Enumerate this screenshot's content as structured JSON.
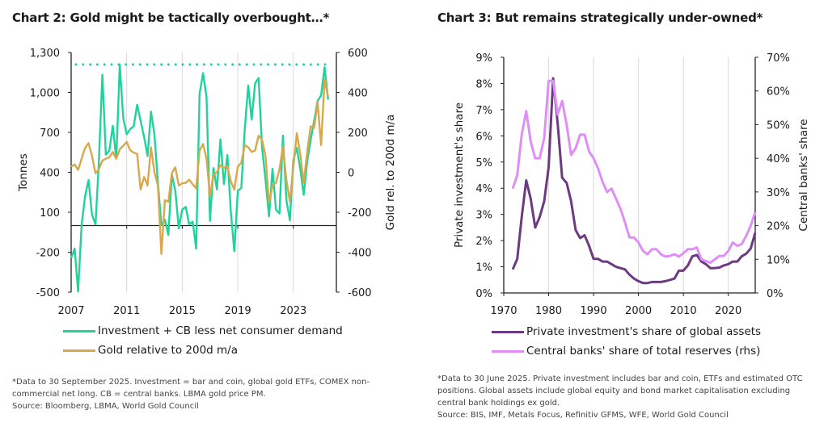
{
  "chart_data": [
    {
      "type": "line",
      "title": "Chart 2: Gold might be tactically overbought…*",
      "ylabel": "Tonnes",
      "y2label": "Gold rel. to 200d m/a",
      "ylim": [
        -500,
        1300
      ],
      "y2lim": [
        -600,
        600
      ],
      "yticks": [
        "1,300",
        "1,000",
        "700",
        "400",
        "100",
        "-200",
        "-500"
      ],
      "ytick_values": [
        1300,
        1000,
        700,
        400,
        100,
        -200,
        -500
      ],
      "y2ticks": [
        "600",
        "400",
        "200",
        "0",
        "-200",
        "-400",
        "-600"
      ],
      "y2tick_values": [
        600,
        400,
        200,
        0,
        -200,
        -400,
        -600
      ],
      "xticks": [
        "2007",
        "2011",
        "2015",
        "2019",
        "2023"
      ],
      "xtick_values": [
        2007,
        2011,
        2015,
        2019,
        2023
      ],
      "xlim": [
        2007,
        2026.1
      ],
      "frequency": "quarterly",
      "x_start": 2007,
      "grid": "vertical",
      "legend_position": "bottom",
      "reference_line": {
        "value": 1210,
        "axis": "left",
        "style": "dotted",
        "color": "#1fd39a"
      },
      "series": [
        {
          "name": "Investment + CB less net consumer demand",
          "axis": "left",
          "color": "#1fd39a",
          "values": [
            -244,
            -173,
            -496,
            2,
            220,
            342,
            80,
            9,
            483,
            1133,
            533,
            563,
            749,
            503,
            1209,
            806,
            685,
            725,
            745,
            907,
            786,
            665,
            523,
            856,
            685,
            321,
            2,
            45,
            -70,
            383,
            261,
            -21,
            120,
            140,
            9,
            29,
            -173,
            987,
            1144,
            967,
            35,
            432,
            271,
            648,
            311,
            529,
            100,
            -193,
            261,
            281,
            725,
            1052,
            796,
            1068,
            1108,
            584,
            342,
            69,
            426,
            120,
            90,
            675,
            190,
            39,
            493,
            584,
            422,
            231,
            483,
            644,
            786,
            937,
            977,
            1189,
            947
          ]
        },
        {
          "name": "Gold relative to 200d m/a",
          "axis": "right",
          "color": "#d9a84c",
          "values": [
            28,
            39,
            12,
            68,
            122,
            146,
            82,
            -5,
            15,
            58,
            68,
            75,
            102,
            68,
            115,
            133,
            152,
            111,
            98,
            93,
            -86,
            -23,
            -66,
            125,
            1,
            -66,
            -409,
            -140,
            -147,
            -5,
            25,
            -66,
            -55,
            -53,
            -37,
            -60,
            -80,
            109,
            142,
            68,
            -120,
            -12,
            1,
            35,
            22,
            31,
            -46,
            -86,
            28,
            48,
            136,
            125,
            102,
            109,
            183,
            163,
            82,
            -154,
            -66,
            -53,
            15,
            129,
            -39,
            -147,
            28,
            196,
            89,
            -53,
            102,
            230,
            223,
            351,
            136,
            465,
            378
          ]
        }
      ],
      "footnote": [
        "*Data to 30 September 2025. Investment = bar and coin, global gold ETFs, COMEX non-",
        "commercial net long. CB = central banks. LBMA gold price PM.",
        "Source: Bloomberg, LBMA, World Gold Council"
      ]
    },
    {
      "type": "line",
      "title": "Chart 3: But remains strategically under-owned*",
      "ylabel": "Private investment's share",
      "y2label": "Central banks' share",
      "ylim": [
        0,
        9
      ],
      "y2lim": [
        0,
        70
      ],
      "yticks": [
        "9%",
        "8%",
        "7%",
        "6%",
        "5%",
        "4%",
        "3%",
        "2%",
        "1%",
        "0%"
      ],
      "ytick_values": [
        9,
        8,
        7,
        6,
        5,
        4,
        3,
        2,
        1,
        0
      ],
      "y2ticks": [
        "70%",
        "60%",
        "50%",
        "40%",
        "30%",
        "20%",
        "10%",
        "0%"
      ],
      "y2tick_values": [
        70,
        60,
        50,
        40,
        30,
        20,
        10,
        0
      ],
      "xticks": [
        "1970",
        "1980",
        "1990",
        "2000",
        "2010",
        "2020"
      ],
      "xtick_values": [
        1970,
        1980,
        1990,
        2000,
        2010,
        2020
      ],
      "xlim": [
        1970,
        2026
      ],
      "frequency": "annual",
      "x_start": 1972,
      "grid": "vertical",
      "legend_position": "bottom",
      "series": [
        {
          "name": "Private investment's share of global assets",
          "axis": "left",
          "color": "#6c3a80",
          "values": [
            0.9,
            1.3,
            2.9,
            4.3,
            3.6,
            2.5,
            2.9,
            3.5,
            4.8,
            8.2,
            6.5,
            4.4,
            4.2,
            3.5,
            2.4,
            2.1,
            2.2,
            1.8,
            1.3,
            1.3,
            1.2,
            1.2,
            1.1,
            1.0,
            0.95,
            0.9,
            0.7,
            0.55,
            0.45,
            0.38,
            0.38,
            0.42,
            0.42,
            0.42,
            0.45,
            0.5,
            0.55,
            0.85,
            0.85,
            1.05,
            1.4,
            1.45,
            1.2,
            1.1,
            0.95,
            0.95,
            0.97,
            1.05,
            1.1,
            1.2,
            1.2,
            1.4,
            1.5,
            1.7,
            2.3
          ]
        },
        {
          "name": "Central banks' share of total reserves (rhs)",
          "axis": "right",
          "color": "#e08ef7",
          "values": [
            31,
            35,
            47,
            54,
            45,
            40,
            40,
            46,
            63,
            63,
            53,
            57,
            50,
            41,
            43,
            47,
            47,
            42,
            40,
            37,
            33,
            30,
            31,
            28,
            25,
            21,
            16.5,
            16.5,
            15,
            12.5,
            11.5,
            13,
            13,
            11.5,
            10.8,
            11,
            11.5,
            10.8,
            11.8,
            13,
            13,
            13.5,
            10,
            9.5,
            9,
            10,
            11,
            11,
            12.5,
            15,
            14,
            14.5,
            17,
            20,
            24
          ]
        }
      ],
      "footnote": [
        "*Data to 30 June 2025. Private investment includes bar and coin, ETFs and estimated OTC",
        "positions. Global assets include global equity and bond market capitalisation excluding",
        "central bank holdings ex gold.",
        "Source: BIS, IMF, Metals Focus, Refinitiv GFMS, WFE, World Gold Council"
      ]
    }
  ]
}
